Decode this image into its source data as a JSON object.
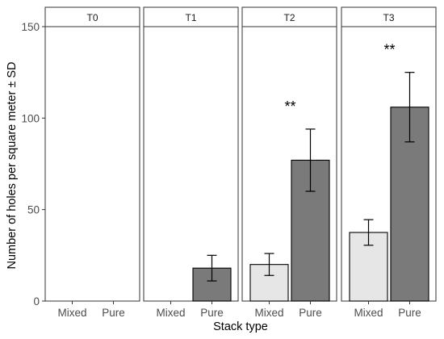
{
  "chart_data": {
    "type": "bar",
    "faceted": true,
    "ylabel": "Number of holes per square meter ± SD",
    "xlabel": "Stack type",
    "ylim": [
      0,
      150
    ],
    "y_ticks": [
      "0",
      "50",
      "100",
      "150"
    ],
    "y_tick_values": [
      0,
      50,
      100,
      150
    ],
    "categories": [
      "Mixed",
      "Pure"
    ],
    "colors": {
      "Mixed": "#e6e6e6",
      "Pure": "#7a7a7a"
    },
    "panels": [
      {
        "label": "T0",
        "values": [
          0,
          0
        ],
        "sd": [
          0,
          0
        ],
        "significance": ""
      },
      {
        "label": "T1",
        "values": [
          0,
          18
        ],
        "sd": [
          0,
          7
        ],
        "significance": ""
      },
      {
        "label": "T2",
        "values": [
          20,
          77
        ],
        "sd": [
          6,
          17
        ],
        "significance": "**"
      },
      {
        "label": "T3",
        "values": [
          37.5,
          106
        ],
        "sd": [
          7,
          19
        ],
        "significance": "**"
      }
    ]
  }
}
